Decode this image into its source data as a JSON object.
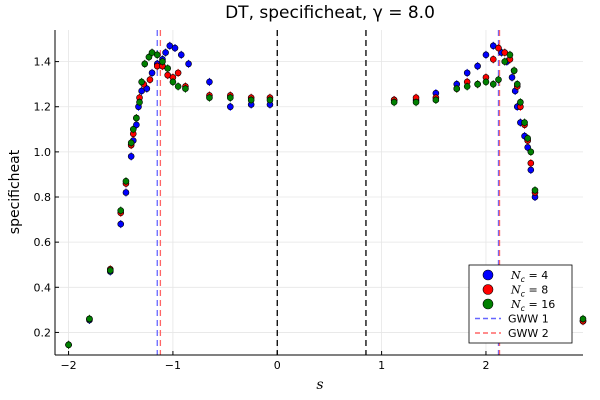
{
  "chart_data": {
    "type": "scatter",
    "title": "DT, specificheat, γ = 8.0",
    "xlabel": "s",
    "ylabel": "specificheat",
    "xlim": [
      -2.13,
      2.93
    ],
    "ylim": [
      0.1,
      1.54
    ],
    "xticks": [
      -2,
      -1,
      0,
      1,
      2
    ],
    "xtick_labels": [
      "−2",
      "−1",
      "0",
      "1",
      "2"
    ],
    "yticks": [
      0.2,
      0.4,
      0.6,
      0.8,
      1.0,
      1.2,
      1.4
    ],
    "ytick_labels": [
      "0.2",
      "0.4",
      "0.6",
      "0.8",
      "1.0",
      "1.2",
      "1.4"
    ],
    "grid": true,
    "legend_position": "bottom-right",
    "series": [
      {
        "name": "N_c = 4",
        "legend_label": "N",
        "legend_sub": "c",
        "legend_value": " = 4",
        "color": "#0000ff",
        "points": [
          [
            -2.0,
            0.145
          ],
          [
            -1.8,
            0.255
          ],
          [
            -1.6,
            0.47
          ],
          [
            -1.5,
            0.68
          ],
          [
            -1.45,
            0.82
          ],
          [
            -1.4,
            0.98
          ],
          [
            -1.38,
            1.05
          ],
          [
            -1.35,
            1.12
          ],
          [
            -1.33,
            1.2
          ],
          [
            -1.3,
            1.27
          ],
          [
            -1.25,
            1.28
          ],
          [
            -1.2,
            1.35
          ],
          [
            -1.15,
            1.39
          ],
          [
            -1.1,
            1.41
          ],
          [
            -1.07,
            1.44
          ],
          [
            -1.03,
            1.47
          ],
          [
            -0.98,
            1.46
          ],
          [
            -0.92,
            1.43
          ],
          [
            -0.85,
            1.39
          ],
          [
            -0.65,
            1.31
          ],
          [
            -0.45,
            1.2
          ],
          [
            -0.25,
            1.21
          ],
          [
            -0.07,
            1.21
          ],
          [
            1.12,
            1.23
          ],
          [
            1.33,
            1.23
          ],
          [
            1.52,
            1.26
          ],
          [
            1.72,
            1.3
          ],
          [
            1.82,
            1.35
          ],
          [
            1.92,
            1.38
          ],
          [
            2.0,
            1.43
          ],
          [
            2.07,
            1.47
          ],
          [
            2.15,
            1.44
          ],
          [
            2.2,
            1.4
          ],
          [
            2.25,
            1.33
          ],
          [
            2.28,
            1.27
          ],
          [
            2.3,
            1.2
          ],
          [
            2.33,
            1.13
          ],
          [
            2.37,
            1.07
          ],
          [
            2.4,
            1.02
          ],
          [
            2.43,
            0.92
          ],
          [
            2.47,
            0.8
          ],
          [
            2.93,
            0.25
          ]
        ]
      },
      {
        "name": "N_c = 8",
        "legend_label": "N",
        "legend_sub": "c",
        "legend_value": " = 8",
        "color": "#ff0000",
        "points": [
          [
            -2.0,
            0.145
          ],
          [
            -1.8,
            0.26
          ],
          [
            -1.6,
            0.48
          ],
          [
            -1.5,
            0.73
          ],
          [
            -1.45,
            0.86
          ],
          [
            -1.4,
            1.03
          ],
          [
            -1.38,
            1.08
          ],
          [
            -1.35,
            1.15
          ],
          [
            -1.32,
            1.24
          ],
          [
            -1.28,
            1.3
          ],
          [
            -1.22,
            1.32
          ],
          [
            -1.15,
            1.38
          ],
          [
            -1.1,
            1.38
          ],
          [
            -1.05,
            1.34
          ],
          [
            -1.0,
            1.33
          ],
          [
            -0.95,
            1.35
          ],
          [
            -0.88,
            1.29
          ],
          [
            -0.65,
            1.25
          ],
          [
            -0.45,
            1.25
          ],
          [
            -0.25,
            1.24
          ],
          [
            -0.07,
            1.24
          ],
          [
            1.12,
            1.23
          ],
          [
            1.33,
            1.24
          ],
          [
            1.52,
            1.24
          ],
          [
            1.72,
            1.28
          ],
          [
            1.82,
            1.31
          ],
          [
            1.92,
            1.3
          ],
          [
            2.0,
            1.33
          ],
          [
            2.07,
            1.41
          ],
          [
            2.12,
            1.46
          ],
          [
            2.18,
            1.44
          ],
          [
            2.23,
            1.41
          ],
          [
            2.27,
            1.36
          ],
          [
            2.3,
            1.29
          ],
          [
            2.33,
            1.2
          ],
          [
            2.37,
            1.12
          ],
          [
            2.4,
            1.05
          ],
          [
            2.43,
            0.95
          ],
          [
            2.47,
            0.82
          ],
          [
            2.93,
            0.25
          ]
        ]
      },
      {
        "name": "N_c = 16",
        "legend_label": "N",
        "legend_sub": "c",
        "legend_value": " = 16",
        "color": "#008000",
        "points": [
          [
            -2.0,
            0.145
          ],
          [
            -1.8,
            0.26
          ],
          [
            -1.6,
            0.475
          ],
          [
            -1.5,
            0.74
          ],
          [
            -1.45,
            0.87
          ],
          [
            -1.4,
            1.04
          ],
          [
            -1.38,
            1.1
          ],
          [
            -1.35,
            1.15
          ],
          [
            -1.32,
            1.22
          ],
          [
            -1.3,
            1.31
          ],
          [
            -1.27,
            1.39
          ],
          [
            -1.23,
            1.42
          ],
          [
            -1.2,
            1.44
          ],
          [
            -1.15,
            1.43
          ],
          [
            -1.1,
            1.4
          ],
          [
            -1.05,
            1.37
          ],
          [
            -1.0,
            1.31
          ],
          [
            -0.95,
            1.29
          ],
          [
            -0.88,
            1.28
          ],
          [
            -0.65,
            1.24
          ],
          [
            -0.45,
            1.24
          ],
          [
            -0.25,
            1.23
          ],
          [
            -0.07,
            1.23
          ],
          [
            1.12,
            1.22
          ],
          [
            1.33,
            1.22
          ],
          [
            1.52,
            1.23
          ],
          [
            1.72,
            1.28
          ],
          [
            1.82,
            1.29
          ],
          [
            1.92,
            1.3
          ],
          [
            2.0,
            1.31
          ],
          [
            2.07,
            1.3
          ],
          [
            2.12,
            1.32
          ],
          [
            2.18,
            1.4
          ],
          [
            2.23,
            1.43
          ],
          [
            2.27,
            1.36
          ],
          [
            2.3,
            1.3
          ],
          [
            2.33,
            1.22
          ],
          [
            2.37,
            1.13
          ],
          [
            2.4,
            1.06
          ],
          [
            2.43,
            1.0
          ],
          [
            2.47,
            0.83
          ],
          [
            2.93,
            0.26
          ]
        ]
      }
    ],
    "vlines": [
      {
        "name": "GWW 1",
        "x": -1.15,
        "color": "#6666ff",
        "style": "dashed"
      },
      {
        "name": "GWW 2",
        "x": -1.12,
        "color": "#ff6666",
        "style": "dashed"
      },
      {
        "name": "GWW 1",
        "x": 2.12,
        "color": "#6666ff",
        "style": "dashed"
      },
      {
        "name": "GWW 2",
        "x": 2.13,
        "color": "#ff6666",
        "style": "dashed"
      },
      {
        "name": "",
        "x": 0.0,
        "color": "#000000",
        "style": "dashed"
      },
      {
        "name": "",
        "x": 0.85,
        "color": "#000000",
        "style": "dashed"
      }
    ],
    "legend": [
      {
        "type": "marker",
        "series": 0
      },
      {
        "type": "marker",
        "series": 1
      },
      {
        "type": "marker",
        "series": 2
      },
      {
        "type": "line",
        "label": "GWW 1",
        "color": "#6666ff"
      },
      {
        "type": "line",
        "label": "GWW 2",
        "color": "#ff6666"
      }
    ]
  }
}
